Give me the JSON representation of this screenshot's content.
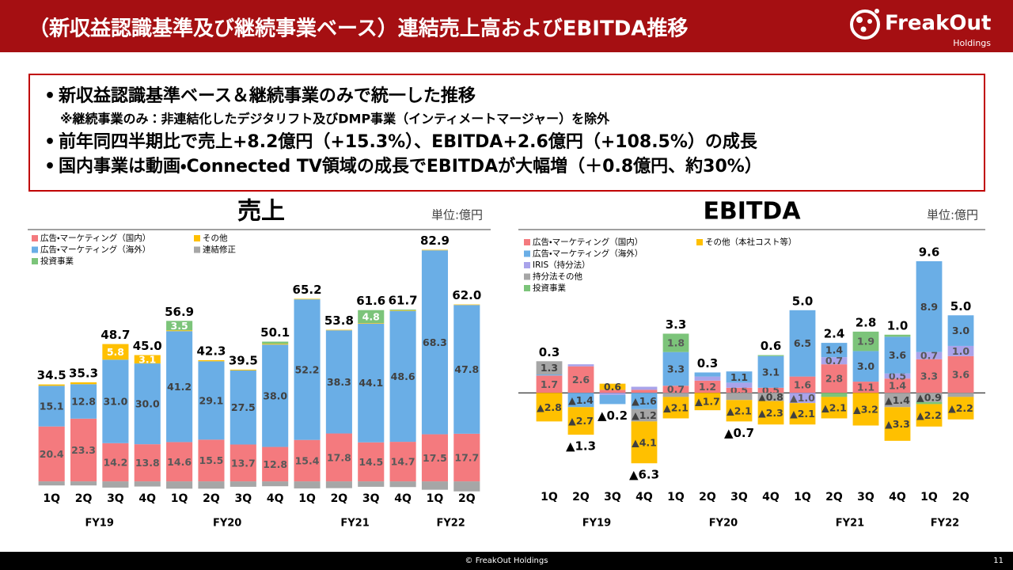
{
  "header": {
    "title": "（新収益認識基準及び継続事業ベース）連結売上高およびEBITDA推移",
    "logo": "FreakOut",
    "logo_sub": "Holdings"
  },
  "summary": {
    "points": [
      "新収益認識基準ベース＆継続事業のみで統一した推移",
      "前年同四半期比で売上+8.2億円（+15.3%）、EBITDA+2.6億円（+108.5%）の成長",
      "国内事業は動画・Connected TV領域の成長でEBITDAが大幅増（＋0.8億円、約30%）"
    ],
    "note": "※継続事業のみ：非連結化したデジタリフト及びDMP事業（インティメートマージャー）を除外"
  },
  "chart_data": [
    {
      "type": "bar",
      "stacked": true,
      "title": "売上",
      "unit": "単位:億円",
      "categories": [
        "1Q",
        "2Q",
        "3Q",
        "4Q",
        "1Q",
        "2Q",
        "3Q",
        "4Q",
        "1Q",
        "2Q",
        "3Q",
        "4Q",
        "1Q",
        "2Q"
      ],
      "fiscal_years": [
        "FY19",
        "FY19",
        "FY19",
        "FY19",
        "FY20",
        "FY20",
        "FY20",
        "FY20",
        "FY21",
        "FY21",
        "FY21",
        "FY21",
        "FY22",
        "FY22"
      ],
      "ylim": [
        -3.5,
        93.5
      ],
      "series": [
        {
          "name": "広告・マーケティング（国内）",
          "color": "#f47a7e",
          "label_color": "#595959",
          "values": [
            20.4,
            23.3,
            14.2,
            13.8,
            14.6,
            15.5,
            13.7,
            12.8,
            15.4,
            17.8,
            14.5,
            14.7,
            17.5,
            17.7
          ],
          "value_labels": [
            "20.4",
            "23.3",
            "14.2",
            "13.8",
            "14.6",
            "15.5",
            "13.7",
            "12.8",
            "15.4",
            "17.8",
            "14.5",
            "14.7",
            "17.5",
            "17.7"
          ]
        },
        {
          "name": "その他",
          "color": "#ffc000",
          "label_color": "#ffffff",
          "values": [
            0.5,
            0.7,
            5.8,
            3.1,
            0.3,
            0.4,
            0.3,
            0.3,
            0.2,
            0.2,
            0.2,
            0.2,
            0.2,
            0.2
          ],
          "value_labels": [
            null,
            null,
            "5.8",
            "3.1",
            null,
            null,
            null,
            null,
            null,
            null,
            null,
            null,
            null,
            null
          ]
        },
        {
          "name": "広告・マーケティング（海外）",
          "color": "#6aaee6",
          "label_color": "#404040",
          "values": [
            15.1,
            12.8,
            31.0,
            30.0,
            41.2,
            29.1,
            27.5,
            38.0,
            52.2,
            38.3,
            44.1,
            48.6,
            68.3,
            47.8
          ],
          "value_labels": [
            "15.1",
            "12.8",
            "31.0",
            "30.0",
            "41.2",
            "29.1",
            "27.5",
            "38.0",
            "52.2",
            "38.3",
            "44.1",
            "48.6",
            "68.3",
            "47.8"
          ]
        },
        {
          "name": "連結修正",
          "color": "#a6a6a6",
          "label_color": "#404040",
          "values": [
            -1.5,
            -1.5,
            -2.3,
            -1.9,
            -2.7,
            -2.7,
            -2.0,
            -1.8,
            -2.6,
            -2.5,
            -2.0,
            -2.1,
            -3.1,
            -3.7
          ],
          "value_labels": [
            null,
            null,
            null,
            null,
            null,
            null,
            null,
            null,
            null,
            null,
            null,
            null,
            null,
            null
          ]
        },
        {
          "name": "投資事業",
          "color": "#7cc47a",
          "label_color": "#ffffff",
          "values": [
            0,
            0,
            0,
            0,
            3.5,
            0,
            0,
            0.8,
            0,
            0,
            4.8,
            0.3,
            0,
            0
          ],
          "value_labels": [
            null,
            null,
            null,
            null,
            "3.5",
            null,
            null,
            null,
            null,
            null,
            "4.8",
            null,
            null,
            null
          ]
        }
      ],
      "totals": {
        "values": [
          34.5,
          35.3,
          48.7,
          45.0,
          56.9,
          42.3,
          39.5,
          50.1,
          65.2,
          53.8,
          61.6,
          61.7,
          82.9,
          62.0
        ],
        "value_labels": [
          "34.5",
          "35.3",
          "48.7",
          "45.0",
          "56.9",
          "42.3",
          "39.5",
          "50.1",
          "65.2",
          "53.8",
          "61.6",
          "61.7",
          "82.9",
          "62.0"
        ]
      }
    },
    {
      "type": "bar",
      "stacked": true,
      "title": "EBITDA",
      "unit": "単位:億円",
      "categories": [
        "1Q",
        "2Q",
        "3Q",
        "4Q",
        "1Q",
        "2Q",
        "3Q",
        "4Q",
        "1Q",
        "2Q",
        "3Q",
        "4Q",
        "1Q",
        "2Q"
      ],
      "fiscal_years": [
        "FY19",
        "FY19",
        "FY19",
        "FY19",
        "FY20",
        "FY20",
        "FY20",
        "FY20",
        "FY21",
        "FY21",
        "FY21",
        "FY21",
        "FY22",
        "FY22"
      ],
      "ylim": [
        -9.6,
        16
      ],
      "series": [
        {
          "name": "広告・マーケティング（国内）",
          "color": "#f47a7e",
          "label_color": "#595959",
          "values": [
            1.7,
            2.6,
            0.3,
            0.3,
            0.7,
            1.2,
            0.5,
            0.5,
            1.6,
            2.8,
            1.1,
            1.4,
            3.3,
            3.6
          ],
          "value_labels": [
            "1.7",
            "2.6",
            null,
            null,
            "0.7",
            "1.2",
            "0.5",
            "0.5",
            "1.6",
            "2.8",
            "1.1",
            "1.4",
            "3.3",
            "3.6"
          ]
        },
        {
          "name": "その他（本社コスト等）",
          "color": "#ffc000",
          "label_color": "#404040",
          "values": [
            -2.8,
            -2.7,
            0.6,
            -4.1,
            -2.1,
            -1.7,
            -2.1,
            -2.3,
            -2.1,
            -2.1,
            -3.2,
            -3.3,
            -2.2,
            -2.2
          ],
          "value_labels": [
            "▲2.8",
            "▲2.7",
            "0.6",
            "▲4.1",
            "▲2.1",
            "▲1.7",
            "▲2.1",
            "▲2.3",
            "▲2.1",
            "▲2.1",
            "▲3.2",
            "▲3.3",
            "▲2.2",
            "▲2.2"
          ]
        },
        {
          "name": "広告・マーケティング（海外）",
          "color": "#6aaee6",
          "label_color": "#404040",
          "values": [
            0.1,
            -1.4,
            -0.9,
            -1.6,
            3.3,
            0.4,
            1.1,
            3.1,
            6.5,
            1.4,
            3.0,
            3.6,
            8.9,
            3.0
          ],
          "value_labels": [
            null,
            "▲1.4",
            null,
            "▲1.6",
            "3.3",
            null,
            "1.1",
            "3.1",
            "6.5",
            "1.4",
            "3.0",
            "3.6",
            "8.9",
            "3.0"
          ]
        },
        {
          "name": "IRIS（持分法）",
          "color": "#a9a3ea",
          "label_color": "#595959",
          "values": [
            0,
            0.2,
            -0.2,
            0.3,
            0,
            0.4,
            0.5,
            0,
            -1.0,
            0.7,
            0,
            0.5,
            0.7,
            1.0
          ],
          "value_labels": [
            null,
            null,
            null,
            null,
            null,
            null,
            null,
            null,
            "▲1.0",
            "0.7",
            null,
            "0.5",
            "0.7",
            "1.0"
          ]
        },
        {
          "name": "持分法その他",
          "color": "#a6a6a6",
          "label_color": "#404040",
          "values": [
            1.3,
            0,
            0,
            -1.2,
            -0.4,
            0,
            -0.7,
            -0.8,
            0,
            0,
            0,
            -1.4,
            -0.9,
            -0.4
          ],
          "value_labels": [
            "1.3",
            null,
            null,
            "▲1.2",
            null,
            null,
            null,
            "▲0.8",
            null,
            null,
            null,
            "▲1.4",
            "▲0.9",
            null
          ]
        },
        {
          "name": "投資事業",
          "color": "#7cc47a",
          "label_color": "#595959",
          "values": [
            0,
            0,
            0,
            0,
            1.8,
            0,
            0,
            0.1,
            0,
            -0.4,
            1.9,
            0.2,
            -0.2,
            0
          ],
          "value_labels": [
            null,
            null,
            null,
            null,
            "1.8",
            null,
            null,
            null,
            null,
            null,
            "1.9",
            null,
            null,
            null
          ]
        }
      ],
      "totals": {
        "values": [
          0.3,
          -1.3,
          -0.2,
          -6.3,
          3.3,
          0.3,
          -0.7,
          0.6,
          5.0,
          2.4,
          2.8,
          1.0,
          9.6,
          5.0
        ],
        "value_labels": [
          "0.3",
          "▲1.3",
          "▲0.2",
          "▲6.3",
          "3.3",
          "0.3",
          "▲0.7",
          "0.6",
          "5.0",
          "2.4",
          "2.8",
          "1.0",
          "9.6",
          "5.0"
        ]
      }
    }
  ],
  "footer": {
    "copyright": "© FreakOut Holdings",
    "page": 11
  }
}
